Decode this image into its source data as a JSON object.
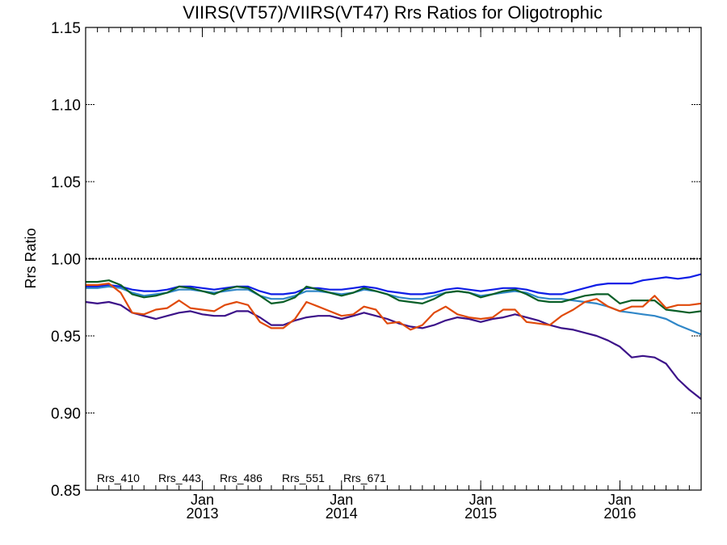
{
  "chart_data": {
    "type": "line",
    "title": "VIIRS(VT57)/VIIRS(VT47)  Rrs Ratios for Oligotrophic",
    "xlabel": "",
    "ylabel": "Rrs Ratio",
    "ylim": [
      0.85,
      1.15
    ],
    "y_ticks": [
      {
        "value": 0.85,
        "label": "0.85"
      },
      {
        "value": 0.9,
        "label": "0.90"
      },
      {
        "value": 0.95,
        "label": "0.95"
      },
      {
        "value": 1.0,
        "label": "1.00"
      },
      {
        "value": 1.05,
        "label": "1.05"
      },
      {
        "value": 1.1,
        "label": "1.10"
      },
      {
        "value": 1.15,
        "label": "1.15"
      }
    ],
    "xlim": [
      "2012-03-01",
      "2016-08-01"
    ],
    "x_ticks": [
      {
        "date": "2013-01-01",
        "label": "Jan",
        "label2": "2013"
      },
      {
        "date": "2014-01-01",
        "label": "Jan",
        "label2": "2014"
      },
      {
        "date": "2015-01-01",
        "label": "Jan",
        "label2": "2015"
      },
      {
        "date": "2016-01-01",
        "label": "Jan",
        "label2": "2016"
      }
    ],
    "reference_line": 1.0,
    "grid": false,
    "legend_position": "bottom-left",
    "x": [
      "2012-03-01",
      "2012-04-01",
      "2012-05-01",
      "2012-06-01",
      "2012-07-01",
      "2012-08-01",
      "2012-09-01",
      "2012-10-01",
      "2012-11-01",
      "2012-12-01",
      "2013-01-01",
      "2013-02-01",
      "2013-03-01",
      "2013-04-01",
      "2013-05-01",
      "2013-06-01",
      "2013-07-01",
      "2013-08-01",
      "2013-09-01",
      "2013-10-01",
      "2013-11-01",
      "2013-12-01",
      "2014-01-01",
      "2014-02-01",
      "2014-03-01",
      "2014-04-01",
      "2014-05-01",
      "2014-06-01",
      "2014-07-01",
      "2014-08-01",
      "2014-09-01",
      "2014-10-01",
      "2014-11-01",
      "2014-12-01",
      "2015-01-01",
      "2015-02-01",
      "2015-03-01",
      "2015-04-01",
      "2015-05-01",
      "2015-06-01",
      "2015-07-01",
      "2015-08-01",
      "2015-09-01",
      "2015-10-01",
      "2015-11-01",
      "2015-12-01",
      "2016-01-01",
      "2016-02-01",
      "2016-03-01",
      "2016-04-01",
      "2016-05-01",
      "2016-06-01",
      "2016-07-01",
      "2016-08-01"
    ],
    "series": [
      {
        "name": "Rrs_410",
        "color": "#3c1289",
        "values": [
          0.972,
          0.971,
          0.972,
          0.97,
          0.965,
          0.963,
          0.961,
          0.963,
          0.965,
          0.966,
          0.964,
          0.963,
          0.963,
          0.966,
          0.966,
          0.962,
          0.957,
          0.957,
          0.96,
          0.962,
          0.963,
          0.963,
          0.961,
          0.963,
          0.965,
          0.963,
          0.961,
          0.958,
          0.956,
          0.955,
          0.957,
          0.96,
          0.962,
          0.961,
          0.959,
          0.961,
          0.962,
          0.964,
          0.962,
          0.96,
          0.957,
          0.955,
          0.954,
          0.952,
          0.95,
          0.947,
          0.943,
          0.936,
          0.937,
          0.936,
          0.932,
          0.922,
          0.915,
          0.909
        ]
      },
      {
        "name": "Rrs_443",
        "color": "#0f1ee6",
        "values": [
          0.982,
          0.982,
          0.983,
          0.982,
          0.98,
          0.979,
          0.979,
          0.98,
          0.982,
          0.982,
          0.981,
          0.98,
          0.981,
          0.982,
          0.982,
          0.979,
          0.977,
          0.977,
          0.978,
          0.981,
          0.981,
          0.98,
          0.98,
          0.981,
          0.982,
          0.981,
          0.979,
          0.978,
          0.977,
          0.977,
          0.978,
          0.98,
          0.981,
          0.98,
          0.979,
          0.98,
          0.981,
          0.981,
          0.98,
          0.978,
          0.977,
          0.977,
          0.979,
          0.981,
          0.983,
          0.984,
          0.984,
          0.984,
          0.986,
          0.987,
          0.988,
          0.987,
          0.988,
          0.99
        ]
      },
      {
        "name": "Rrs_486",
        "color": "#3087c8",
        "values": [
          0.981,
          0.981,
          0.982,
          0.981,
          0.978,
          0.976,
          0.977,
          0.978,
          0.98,
          0.98,
          0.979,
          0.978,
          0.979,
          0.98,
          0.98,
          0.976,
          0.974,
          0.974,
          0.976,
          0.979,
          0.979,
          0.978,
          0.977,
          0.978,
          0.98,
          0.979,
          0.977,
          0.975,
          0.974,
          0.974,
          0.976,
          0.978,
          0.979,
          0.978,
          0.976,
          0.977,
          0.978,
          0.979,
          0.978,
          0.975,
          0.974,
          0.974,
          0.973,
          0.972,
          0.971,
          0.969,
          0.966,
          0.965,
          0.964,
          0.963,
          0.961,
          0.957,
          0.954,
          0.951
        ]
      },
      {
        "name": "Rrs_551",
        "color": "#0a5f28",
        "values": [
          0.985,
          0.985,
          0.986,
          0.983,
          0.977,
          0.975,
          0.976,
          0.978,
          0.982,
          0.981,
          0.979,
          0.977,
          0.98,
          0.982,
          0.981,
          0.976,
          0.971,
          0.972,
          0.975,
          0.982,
          0.98,
          0.978,
          0.976,
          0.978,
          0.981,
          0.979,
          0.977,
          0.973,
          0.972,
          0.971,
          0.974,
          0.978,
          0.979,
          0.978,
          0.975,
          0.977,
          0.979,
          0.98,
          0.977,
          0.973,
          0.972,
          0.972,
          0.974,
          0.976,
          0.977,
          0.977,
          0.971,
          0.973,
          0.973,
          0.973,
          0.967,
          0.966,
          0.965,
          0.966
        ]
      },
      {
        "name": "Rrs_671",
        "color": "#e04a0a",
        "values": [
          0.983,
          0.983,
          0.984,
          0.978,
          0.965,
          0.964,
          0.967,
          0.968,
          0.973,
          0.968,
          0.967,
          0.966,
          0.97,
          0.972,
          0.97,
          0.959,
          0.955,
          0.955,
          0.961,
          0.972,
          0.969,
          0.966,
          0.963,
          0.964,
          0.969,
          0.967,
          0.958,
          0.959,
          0.954,
          0.957,
          0.965,
          0.969,
          0.964,
          0.962,
          0.961,
          0.962,
          0.967,
          0.967,
          0.959,
          0.958,
          0.957,
          0.963,
          0.967,
          0.972,
          0.974,
          0.969,
          0.966,
          0.969,
          0.969,
          0.976,
          0.968,
          0.97,
          0.97,
          0.971
        ]
      }
    ]
  }
}
